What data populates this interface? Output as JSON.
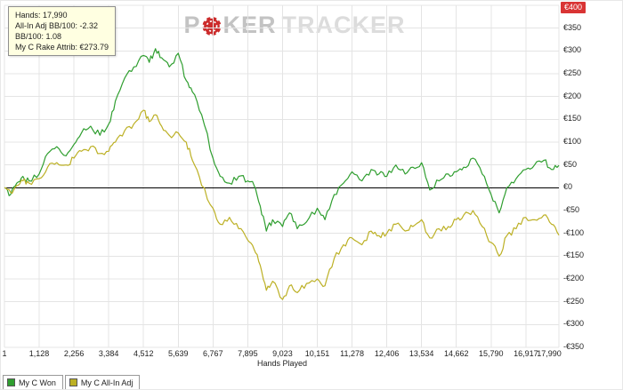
{
  "colors": {
    "green": "#2f9e2f",
    "yellow": "#bcb024",
    "grid": "#e4e4e4",
    "zero_line": "#000000",
    "infobox_bg": "#ffffe1",
    "badge_red": "#d93434",
    "chip_red": "#cc2b2b"
  },
  "info_box": {
    "lines": [
      "Hands: 17,990",
      "All-In Adj BB/100: -2.32",
      "BB/100: 1.08",
      "My C Rake Attrib: €273.79"
    ]
  },
  "watermark": {
    "part1": "P",
    "part2": "KER",
    "part3": "TRACKER"
  },
  "chart_data": {
    "type": "line",
    "title": "",
    "xlabel": "Hands Played",
    "ylabel": "",
    "xlim": [
      1,
      17990
    ],
    "ylim": [
      -350,
      400
    ],
    "grid": true,
    "zero_line": true,
    "legend_position": "bottom-left",
    "x_ticks": {
      "values": [
        1,
        1128,
        2256,
        3384,
        4512,
        5639,
        6767,
        7895,
        9023,
        10151,
        11278,
        12406,
        13534,
        14662,
        15790,
        16917,
        17990
      ],
      "labels": [
        "1",
        "1,128",
        "2,256",
        "3,384",
        "4,512",
        "5,639",
        "6,767",
        "7,895",
        "9,023",
        "10,151",
        "11,278",
        "12,406",
        "13,534",
        "14,662",
        "15,790",
        "16,917",
        "17,990"
      ]
    },
    "y_ticks": {
      "values": [
        400,
        350,
        300,
        250,
        200,
        150,
        100,
        50,
        0,
        -50,
        -100,
        -150,
        -200,
        -250,
        -300,
        -350
      ],
      "labels": [
        "€400",
        "€350",
        "€300",
        "€250",
        "€200",
        "€150",
        "€100",
        "€50",
        "€0",
        "-€50",
        "-€100",
        "-€150",
        "-€200",
        "-€250",
        "-€300",
        "-€350"
      ]
    },
    "x": [
      1,
      200,
      400,
      600,
      800,
      1128,
      1400,
      1700,
      2000,
      2256,
      2500,
      2800,
      3100,
      3384,
      3600,
      3900,
      4200,
      4512,
      4700,
      4900,
      5100,
      5350,
      5639,
      5900,
      6100,
      6400,
      6767,
      7000,
      7300,
      7600,
      7895,
      8100,
      8300,
      8500,
      8700,
      9023,
      9250,
      9500,
      9800,
      10151,
      10400,
      10700,
      11000,
      11278,
      11600,
      11900,
      12150,
      12406,
      12700,
      13000,
      13250,
      13534,
      13800,
      14100,
      14400,
      14662,
      14900,
      15200,
      15500,
      15790,
      16050,
      16300,
      16600,
      16917,
      17200,
      17500,
      17750,
      17990
    ],
    "series": [
      {
        "name": "My C Won",
        "color": "#2f9e2f",
        "values": [
          0,
          -15,
          10,
          25,
          15,
          30,
          75,
          90,
          70,
          95,
          120,
          135,
          115,
          140,
          190,
          240,
          265,
          290,
          275,
          305,
          285,
          265,
          295,
          235,
          210,
          160,
          65,
          25,
          10,
          25,
          15,
          5,
          -40,
          -95,
          -70,
          -85,
          -55,
          -90,
          -75,
          -45,
          -70,
          -15,
          10,
          35,
          15,
          40,
          30,
          25,
          50,
          30,
          45,
          55,
          -5,
          15,
          30,
          35,
          45,
          65,
          30,
          -15,
          -55,
          0,
          20,
          40,
          50,
          60,
          40,
          49
        ]
      },
      {
        "name": "My C All-In Adj",
        "color": "#bcb024",
        "values": [
          0,
          -10,
          5,
          15,
          10,
          20,
          45,
          55,
          50,
          65,
          80,
          90,
          75,
          80,
          100,
          125,
          140,
          170,
          145,
          160,
          135,
          115,
          120,
          100,
          60,
          5,
          -45,
          -80,
          -65,
          -90,
          -115,
          -135,
          -170,
          -225,
          -205,
          -245,
          -215,
          -230,
          -210,
          -200,
          -215,
          -155,
          -125,
          -110,
          -125,
          -95,
          -105,
          -100,
          -80,
          -95,
          -85,
          -70,
          -110,
          -90,
          -85,
          -70,
          -60,
          -50,
          -85,
          -120,
          -150,
          -105,
          -90,
          -65,
          -70,
          -60,
          -80,
          -104
        ]
      }
    ]
  },
  "legend": {
    "items": [
      {
        "label": "My C Won",
        "color": "#2f9e2f"
      },
      {
        "label": "My C All-In Adj",
        "color": "#bcb024"
      }
    ]
  }
}
